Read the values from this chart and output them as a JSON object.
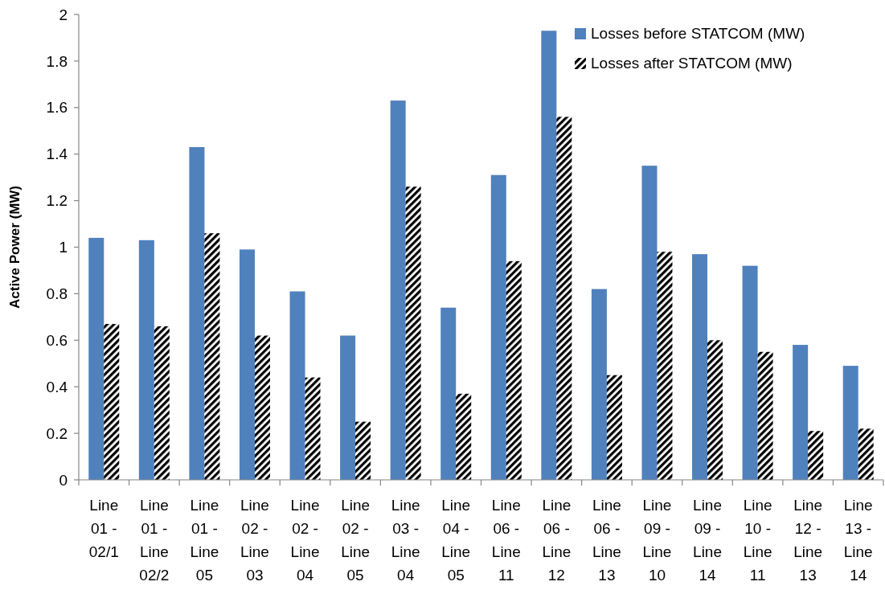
{
  "chart_data": {
    "type": "bar",
    "ylabel": "Active Power (MW)",
    "categories": [
      "Line 01 - 02/1",
      "Line 01 - Line 02/2",
      "Line 01 - Line 05",
      "Line 02 - Line 03",
      "Line 02 - Line 04",
      "Line 02 - Line 05",
      "Line 03 - Line 04",
      "Line 04 - Line 05",
      "Line 06 - Line 11",
      "Line 06 - Line 12",
      "Line 06 - Line 13",
      "Line 09 - Line 10",
      "Line 09 - Line 14",
      "Line 10 - Line 11",
      "Line 12 - Line 13",
      "Line 13 - Line 14"
    ],
    "series": [
      {
        "name": "Losses before STATCOM (MW)",
        "color": "#4f81bd",
        "values": [
          1.04,
          1.03,
          1.43,
          0.99,
          0.81,
          0.62,
          1.63,
          0.74,
          1.31,
          1.93,
          0.82,
          1.35,
          0.97,
          0.92,
          0.58,
          0.49
        ]
      },
      {
        "name": "Losses after STATCOM (MW)",
        "color": "#000000",
        "values": [
          0.67,
          0.66,
          1.06,
          0.62,
          0.44,
          0.25,
          1.26,
          0.37,
          0.94,
          1.56,
          0.45,
          0.98,
          0.6,
          0.55,
          0.21,
          0.22
        ]
      }
    ],
    "ylim": [
      0,
      2
    ],
    "yticks": [
      0,
      0.2,
      0.4,
      0.6,
      0.8,
      1,
      1.2,
      1.4,
      1.6,
      1.8,
      2
    ],
    "grid": false,
    "legend": "top right"
  }
}
